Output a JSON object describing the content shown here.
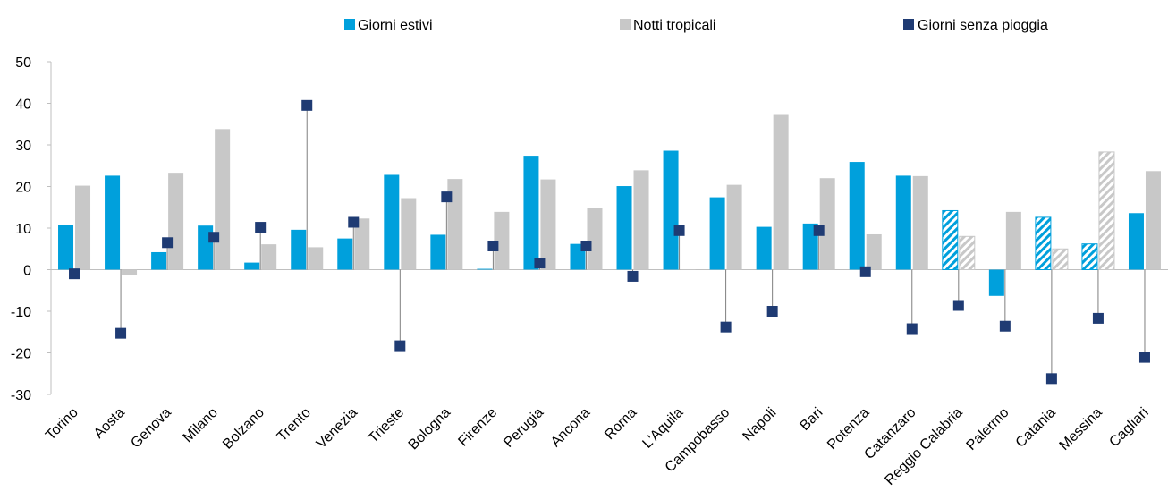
{
  "chart_data": {
    "type": "bar",
    "categories": [
      "Torino",
      "Aosta",
      "Genova",
      "Milano",
      "Bolzano",
      "Trento",
      "Venezia",
      "Trieste",
      "Bologna",
      "Firenze",
      "Perugia",
      "Ancona",
      "Roma",
      "L'Aquila",
      "Campobasso",
      "Napoli",
      "Bari",
      "Potenza",
      "Catanzaro",
      "Reggio Calabria",
      "Palermo",
      "Catania",
      "Messina",
      "Cagliari"
    ],
    "hatched_categories": [
      "Reggio Calabria",
      "Catania",
      "Messina"
    ],
    "series": [
      {
        "name": "Giorni estivi",
        "type": "bar",
        "color": "#00a0dc",
        "values": [
          10.7,
          22.6,
          4.2,
          10.6,
          1.7,
          9.6,
          7.5,
          22.8,
          8.4,
          0.2,
          27.4,
          6.2,
          20.1,
          28.6,
          17.4,
          10.3,
          11.1,
          25.9,
          22.6,
          14.2,
          -6.3,
          12.6,
          6.2,
          13.6
        ]
      },
      {
        "name": "Notti tropicali",
        "type": "bar",
        "color": "#c8c8c8",
        "values": [
          20.2,
          -1.3,
          23.3,
          33.8,
          6.1,
          5.4,
          12.3,
          17.2,
          21.8,
          13.9,
          21.7,
          14.9,
          23.9,
          0.0,
          20.4,
          37.2,
          22.0,
          8.5,
          22.5,
          8.0,
          13.9,
          5.0,
          28.3,
          23.7
        ]
      },
      {
        "name": "Giorni senza pioggia",
        "type": "marker",
        "color": "#1f3b73",
        "values": [
          -1.0,
          -15.3,
          6.5,
          7.8,
          10.2,
          39.5,
          11.4,
          -18.3,
          17.5,
          5.7,
          1.6,
          5.7,
          -1.6,
          9.4,
          -13.8,
          -10.0,
          9.4,
          -0.5,
          -14.2,
          -8.6,
          -13.6,
          -26.2,
          -11.7,
          -21.1
        ]
      }
    ],
    "ylim": [
      -30,
      50
    ],
    "yticks": [
      -30,
      -20,
      -10,
      0,
      10,
      20,
      30,
      40,
      50
    ],
    "legend": "top"
  }
}
